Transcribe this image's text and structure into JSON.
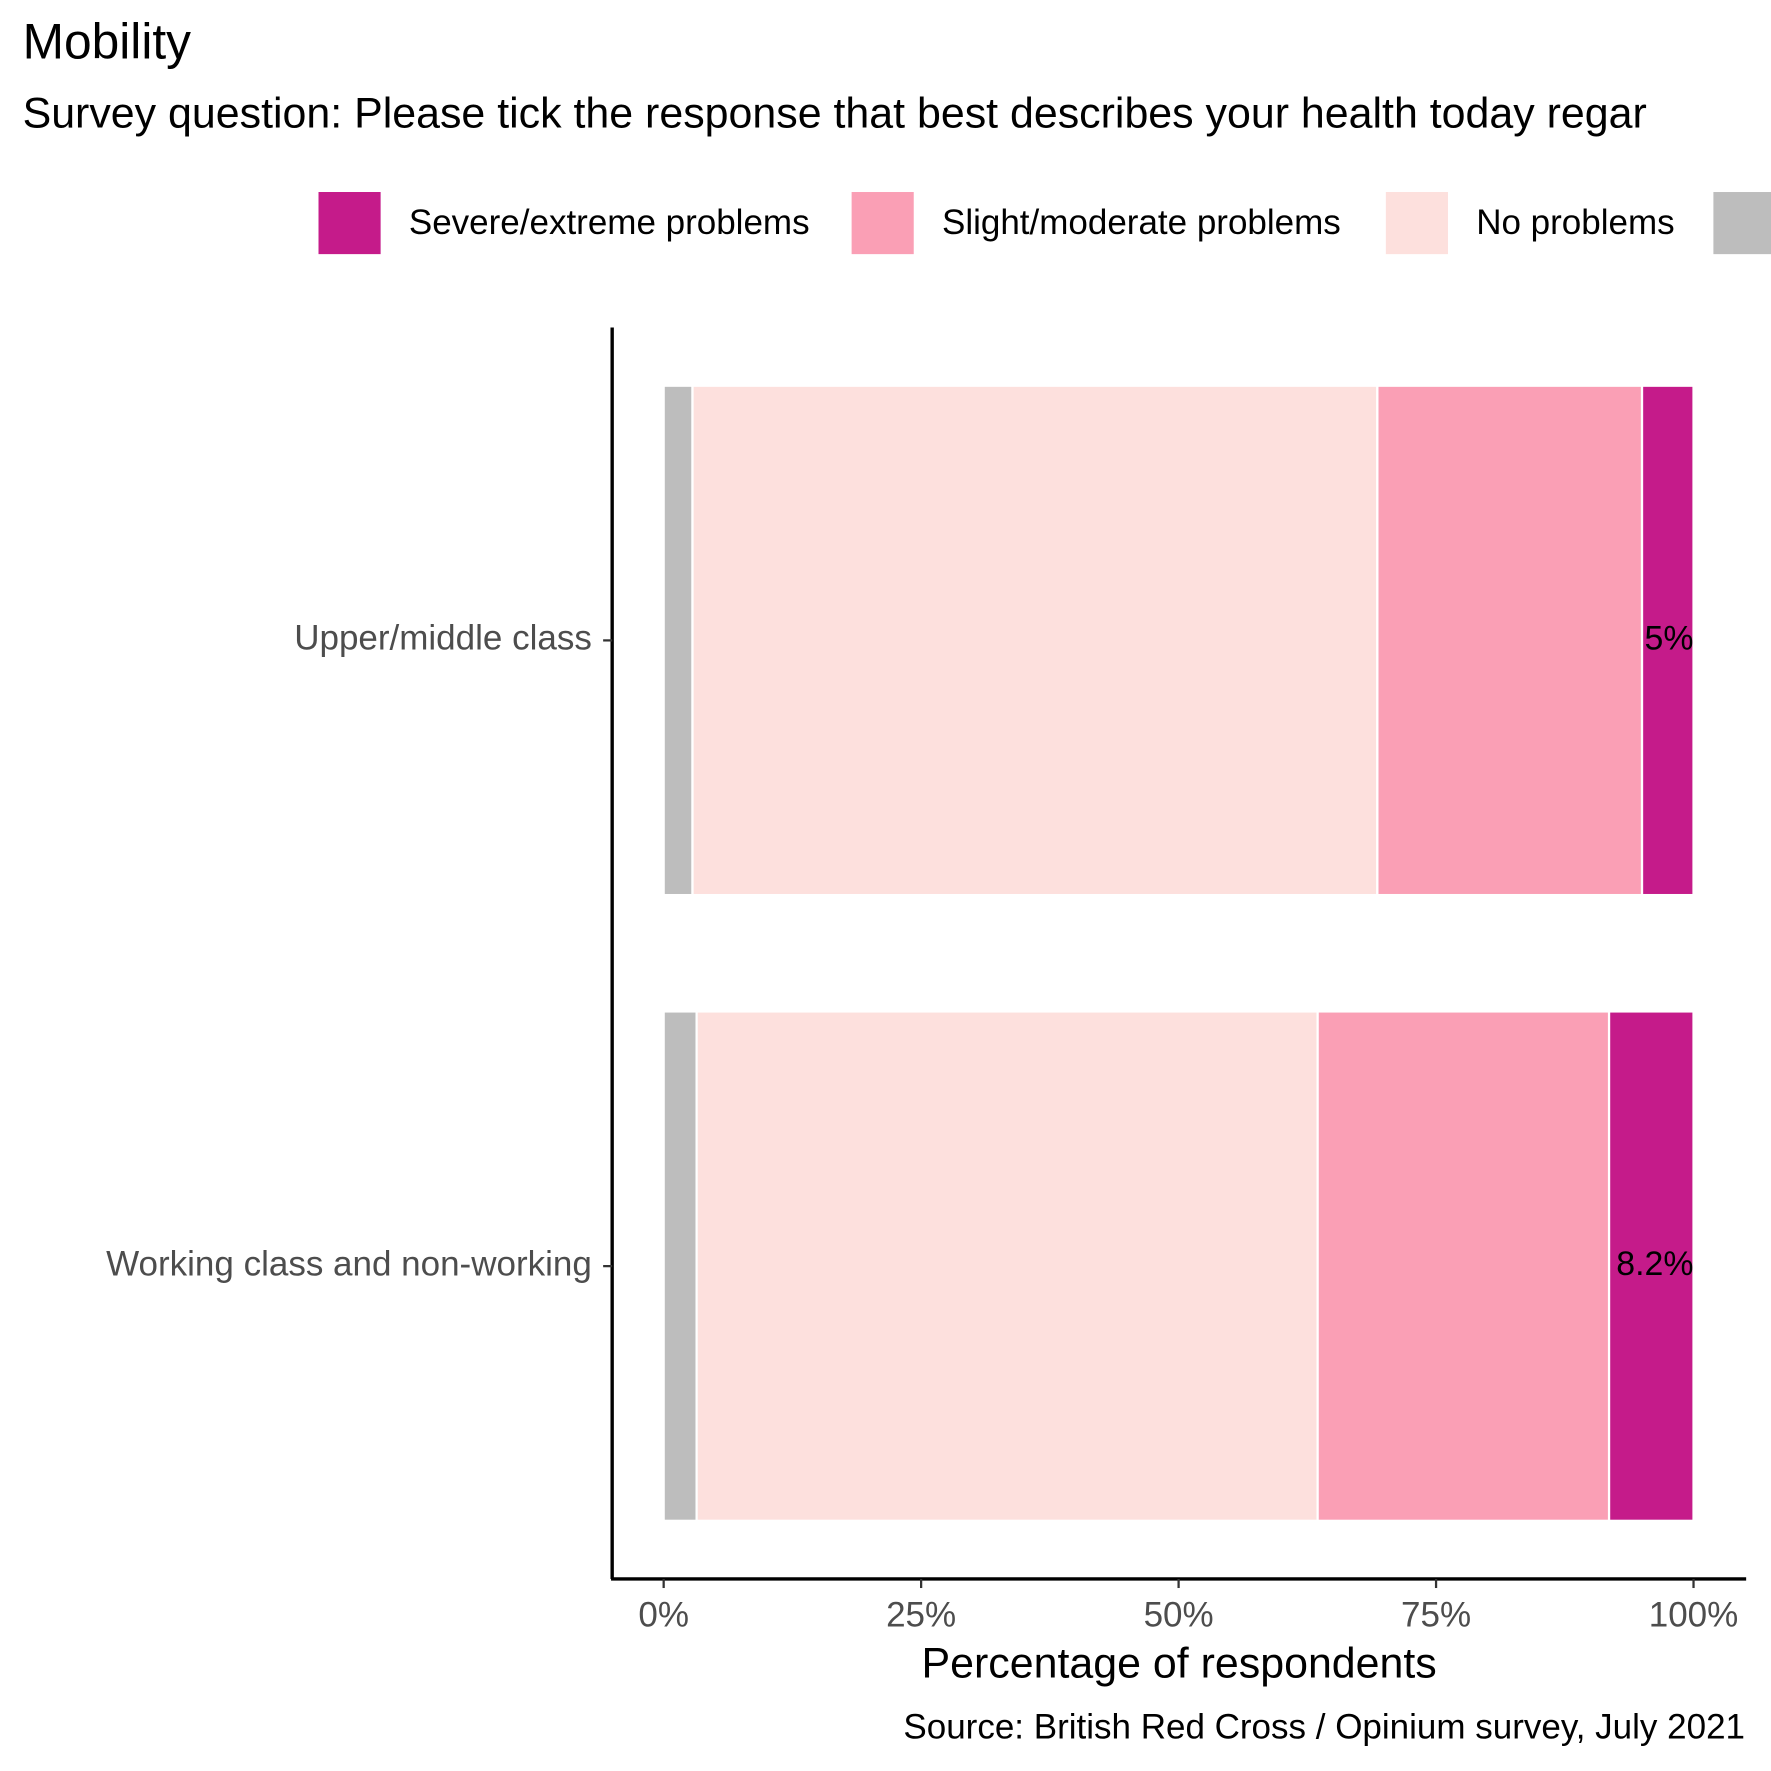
{
  "chart_data": {
    "type": "stacked-bar-horizontal",
    "title": "Mobility",
    "subtitle": "Survey question: Please tick the response that best describes your health today regar",
    "x_label": "Percentage of respondents",
    "caption": "Source: British Red Cross / Opinium survey, July 2021",
    "categories": [
      "Upper/middle class",
      "Working class and non-working"
    ],
    "series": [
      {
        "name": "Severe/extreme problems",
        "color": "#c51b8a",
        "values": [
          5,
          8.2
        ],
        "value_labels": [
          "5%",
          "8.2%"
        ]
      },
      {
        "name": "Slight/moderate problems",
        "color": "#fa9fb5",
        "values": [
          25.7,
          28.3
        ]
      },
      {
        "name": "No problems",
        "color": "#fde0dd",
        "values": [
          66.5,
          60.3
        ]
      },
      {
        "name": null,
        "color": "#bdbdbd",
        "values": [
          2.8,
          3.2
        ]
      }
    ],
    "xlim": [
      -5,
      105
    ],
    "xticks": [
      {
        "value": 0,
        "label": "0%"
      },
      {
        "value": 25,
        "label": "25%"
      },
      {
        "value": 50,
        "label": "50%"
      },
      {
        "value": 75,
        "label": "75%"
      },
      {
        "value": 100,
        "label": "100%"
      }
    ],
    "legend_position": "top",
    "grid": false
  }
}
